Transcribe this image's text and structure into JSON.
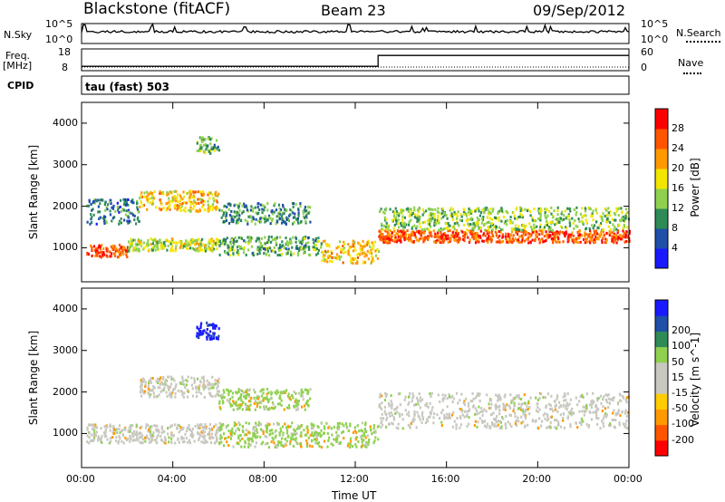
{
  "header": {
    "station": "Blackstone (fitACF)",
    "beam": "Beam 23",
    "date": "09/Sep/2012"
  },
  "strip_labels": {
    "nsky": "N.Sky",
    "nsky_top": "10^5",
    "nsky_bottom": "10^0",
    "nsearch": "N.Search",
    "nsearch_top": "10^5",
    "nsearch_bottom": "10^0",
    "freq_line1": "Freq.",
    "freq_line2": "[MHz]",
    "freq_top": "18",
    "freq_bottom": "8",
    "nave": "Nave",
    "nave_top": "60",
    "nave_bottom": "0",
    "cpid": "CPID",
    "cpid_text": "tau (fast) 503"
  },
  "colors": {
    "power_scale": [
      "#1a1aff",
      "#1f4fa8",
      "#2e8b57",
      "#8fd14f",
      "#f2e600",
      "#ff9900",
      "#ff5500",
      "#ff0000"
    ],
    "velocity_scale": [
      "#ff0000",
      "#ff5500",
      "#ff9900",
      "#ffcc00",
      "#c8c8c0",
      "#c8c8c0",
      "#8fd14f",
      "#2e8b57",
      "#1f4fa8",
      "#1a1aff"
    ]
  },
  "chart_data": [
    {
      "type": "heatmap",
      "name": "power",
      "xlabel": "",
      "ylabel": "Slant Range [km]",
      "xlim": [
        "00:00",
        "24:00"
      ],
      "ylim": [
        180,
        4500
      ],
      "yticks": [
        1000,
        2000,
        3000,
        4000
      ],
      "colorbar_label": "Power [dB]",
      "colorbar_ticks": [
        "4",
        "8",
        "12",
        "16",
        "20",
        "24",
        "28"
      ],
      "colorbar_range": [
        0,
        32
      ],
      "bands": [
        {
          "t0": 0.2,
          "t1": 2.0,
          "r0": 800,
          "r1": 1100,
          "level": 26
        },
        {
          "t0": 2.0,
          "t1": 6.0,
          "r0": 950,
          "r1": 1250,
          "level": 16
        },
        {
          "t0": 6.0,
          "t1": 10.5,
          "r0": 850,
          "r1": 1300,
          "level": 12
        },
        {
          "t0": 10.5,
          "t1": 13.0,
          "r0": 650,
          "r1": 1200,
          "level": 20
        },
        {
          "t0": 0.2,
          "t1": 2.5,
          "r0": 1600,
          "r1": 2200,
          "level": 8
        },
        {
          "t0": 2.5,
          "t1": 6.0,
          "r0": 1900,
          "r1": 2400,
          "level": 20
        },
        {
          "t0": 5.0,
          "t1": 6.0,
          "r0": 3300,
          "r1": 3700,
          "level": 12
        },
        {
          "t0": 6.0,
          "t1": 10.0,
          "r0": 1600,
          "r1": 2100,
          "level": 10
        },
        {
          "t0": 13.0,
          "t1": 24.0,
          "r0": 1150,
          "r1": 1450,
          "level": 26
        },
        {
          "t0": 13.0,
          "t1": 24.0,
          "r0": 1450,
          "r1": 2000,
          "level": 14
        }
      ]
    },
    {
      "type": "heatmap",
      "name": "velocity",
      "xlabel": "Time UT",
      "ylabel": "Slant Range [km]",
      "xlim": [
        "00:00",
        "24:00"
      ],
      "xticks": [
        "00:00",
        "04:00",
        "08:00",
        "12:00",
        "16:00",
        "20:00",
        "00:00"
      ],
      "ylim": [
        180,
        4500
      ],
      "yticks": [
        1000,
        2000,
        3000,
        4000
      ],
      "colorbar_label": "Velocity [m s^-1]",
      "colorbar_ticks": [
        "-200",
        "-100",
        "-50",
        "-15",
        "15",
        "50",
        "100",
        "200"
      ],
      "bands": [
        {
          "t0": 0.2,
          "t1": 6.0,
          "r0": 800,
          "r1": 1250,
          "kind": "gray"
        },
        {
          "t0": 2.5,
          "t1": 6.0,
          "r0": 1900,
          "r1": 2400,
          "kind": "gray"
        },
        {
          "t0": 5.0,
          "t1": 6.0,
          "r0": 3300,
          "r1": 3700,
          "kind": "blue"
        },
        {
          "t0": 6.0,
          "t1": 13.0,
          "r0": 700,
          "r1": 1300,
          "kind": "green"
        },
        {
          "t0": 6.0,
          "t1": 10.0,
          "r0": 1600,
          "r1": 2100,
          "kind": "green"
        },
        {
          "t0": 13.0,
          "t1": 24.0,
          "r0": 1150,
          "r1": 2000,
          "kind": "gray"
        }
      ]
    }
  ],
  "freq_series": {
    "t": [
      0,
      13,
      13,
      24
    ],
    "mhz": [
      10,
      10,
      15,
      15
    ]
  }
}
